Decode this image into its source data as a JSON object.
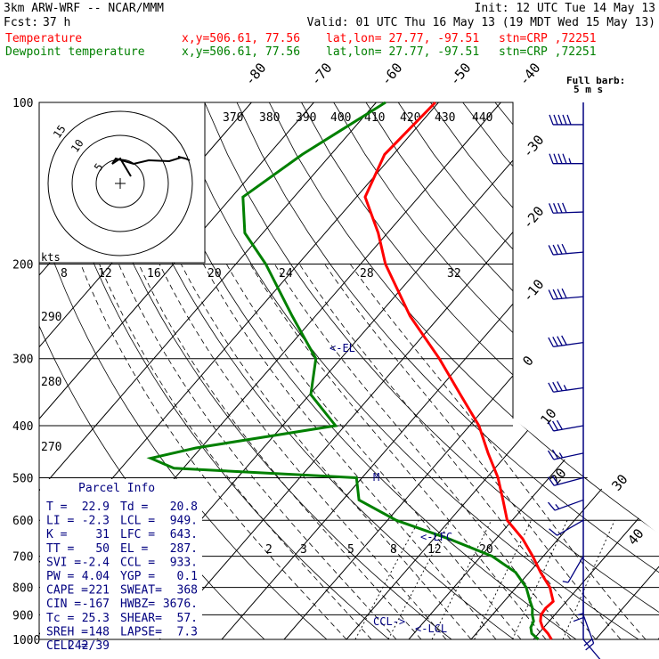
{
  "header": {
    "model": "3km ARW-WRF -- NCAR/MMM",
    "init": "Init: 12 UTC Tue 14 May 13",
    "fcst_label": "Fcst:",
    "fcst_value": "37 h",
    "valid": "Valid: 01 UTC Thu 16 May 13 (19 MDT Wed 15 May 13)",
    "temp_line": {
      "name": "Temperature",
      "xy": "x,y=506.61, 77.56",
      "latlon": "lat,lon= 27.77, -97.51",
      "stn": "stn=CRP ,72251",
      "color": "#ff0000"
    },
    "dew_line": {
      "name": "Dewpoint temperature",
      "xy": "x,y=506.61, 77.56",
      "latlon": "lat,lon= 27.77, -97.51",
      "stn": "stn=CRP ,72251",
      "color": "#008000"
    }
  },
  "barb_legend": {
    "line1": "Full barb:",
    "line2": "5 m s"
  },
  "hodograph": {
    "units": "kts",
    "ring_labels": [
      "5",
      "10",
      "15"
    ]
  },
  "parcel_info": {
    "title": "Parcel Info",
    "rows": [
      [
        "T  =",
        "22.9",
        "Td =",
        "20.8"
      ],
      [
        "LI =",
        "-2.3",
        "LCL =",
        "949."
      ],
      [
        "K  =",
        "31",
        "LFC =",
        "643."
      ],
      [
        "TT =",
        "50",
        "EL =",
        "287."
      ],
      [
        "SVI =",
        "-2.4",
        "CCL =",
        "933."
      ],
      [
        "PW =",
        "4.04",
        "YGP =",
        "0.1"
      ],
      [
        "CAPE =",
        "221",
        "SWEAT=",
        "368"
      ],
      [
        "CIN =",
        "-167",
        "HWBZ=",
        "3676."
      ],
      [
        "Tc =",
        "25.3",
        "SHEAR=",
        "57."
      ],
      [
        "SREH =",
        "148",
        "LAPSE=",
        "7.3"
      ],
      [
        "CELL =",
        "242/39",
        "",
        ""
      ]
    ]
  },
  "chart_data": {
    "type": "line",
    "chart_kind": "skew-T log-P sounding",
    "y_axis": {
      "scale": "log",
      "label": "pressure (hPa)",
      "ticks": [
        100,
        200,
        300,
        400,
        500,
        600,
        700,
        800,
        900,
        1000
      ]
    },
    "x_axis": {
      "label": "temperature (°C)",
      "skewed": true
    },
    "isotherm_labels": [
      "-80",
      "-70",
      "-60",
      "-50",
      "-40",
      "-30",
      "-20",
      "-10",
      "0",
      "10",
      "20",
      "30",
      "40"
    ],
    "theta_labels_top": [
      "370",
      "380",
      "390",
      "400",
      "410",
      "420",
      "430",
      "440"
    ],
    "theta_labels_mid": [
      "290",
      "280",
      "270"
    ],
    "mixing_ratio_labels_upper": [
      "8",
      "12",
      "16",
      "20",
      "24",
      "28",
      "32"
    ],
    "mixing_ratio_labels_lower": [
      "2",
      "3",
      "5",
      "8",
      "12",
      "20"
    ],
    "level_markers": [
      {
        "label": "<-EL",
        "p": 287
      },
      {
        "label": "<-LFC",
        "p": 643
      },
      {
        "label": "<-LCL",
        "p": 949
      },
      {
        "label": "CCL->",
        "p": 933
      },
      {
        "label": "M",
        "p": 500
      }
    ],
    "series": [
      {
        "name": "Temperature",
        "color": "#ff0000",
        "points": [
          [
            1000,
            22.9
          ],
          [
            975,
            21.5
          ],
          [
            950,
            19.8
          ],
          [
            925,
            18.6
          ],
          [
            900,
            17.8
          ],
          [
            875,
            17.6
          ],
          [
            850,
            17.9
          ],
          [
            800,
            15.4
          ],
          [
            750,
            11.8
          ],
          [
            700,
            8.3
          ],
          [
            650,
            4.3
          ],
          [
            600,
            -0.8
          ],
          [
            550,
            -4.3
          ],
          [
            500,
            -8.2
          ],
          [
            450,
            -13.2
          ],
          [
            400,
            -18.5
          ],
          [
            350,
            -25.8
          ],
          [
            300,
            -34.2
          ],
          [
            250,
            -44.8
          ],
          [
            200,
            -56.0
          ],
          [
            175,
            -61.5
          ],
          [
            150,
            -68.6
          ],
          [
            125,
            -71.4
          ],
          [
            100,
            -70.5
          ]
        ]
      },
      {
        "name": "Dewpoint temperature",
        "color": "#008000",
        "points": [
          [
            1000,
            20.8
          ],
          [
            975,
            18.9
          ],
          [
            950,
            17.9
          ],
          [
            925,
            17.5
          ],
          [
            900,
            16.4
          ],
          [
            875,
            15.5
          ],
          [
            850,
            14.2
          ],
          [
            800,
            11.6
          ],
          [
            750,
            7.8
          ],
          [
            700,
            1.8
          ],
          [
            650,
            -7.5
          ],
          [
            600,
            -18.6
          ],
          [
            550,
            -27.4
          ],
          [
            500,
            -30.9
          ],
          [
            480,
            -61.5
          ],
          [
            460,
            -66.6
          ],
          [
            440,
            -60.8
          ],
          [
            400,
            -41.5
          ],
          [
            350,
            -49.8
          ],
          [
            300,
            -54.0
          ],
          [
            250,
            -63.7
          ],
          [
            200,
            -75.2
          ],
          [
            175,
            -82.9
          ],
          [
            150,
            -88.2
          ],
          [
            125,
            -84.6
          ],
          [
            100,
            -78.5
          ]
        ]
      }
    ],
    "wind_barbs_kt": [
      {
        "p": 110,
        "dir": 270,
        "spd": 50
      },
      {
        "p": 130,
        "dir": 270,
        "spd": 45
      },
      {
        "p": 160,
        "dir": 268,
        "spd": 40
      },
      {
        "p": 190,
        "dir": 265,
        "spd": 40
      },
      {
        "p": 230,
        "dir": 265,
        "spd": 40
      },
      {
        "p": 280,
        "dir": 262,
        "spd": 40
      },
      {
        "p": 340,
        "dir": 262,
        "spd": 35
      },
      {
        "p": 400,
        "dir": 260,
        "spd": 30
      },
      {
        "p": 450,
        "dir": 258,
        "spd": 25
      },
      {
        "p": 500,
        "dir": 255,
        "spd": 20
      },
      {
        "p": 550,
        "dir": 250,
        "spd": 15
      },
      {
        "p": 600,
        "dir": 240,
        "spd": 10
      },
      {
        "p": 700,
        "dir": 210,
        "spd": 5
      },
      {
        "p": 800,
        "dir": 180,
        "spd": 15
      },
      {
        "p": 900,
        "dir": 160,
        "spd": 20
      },
      {
        "p": 1000,
        "dir": 140,
        "spd": 15
      }
    ]
  }
}
